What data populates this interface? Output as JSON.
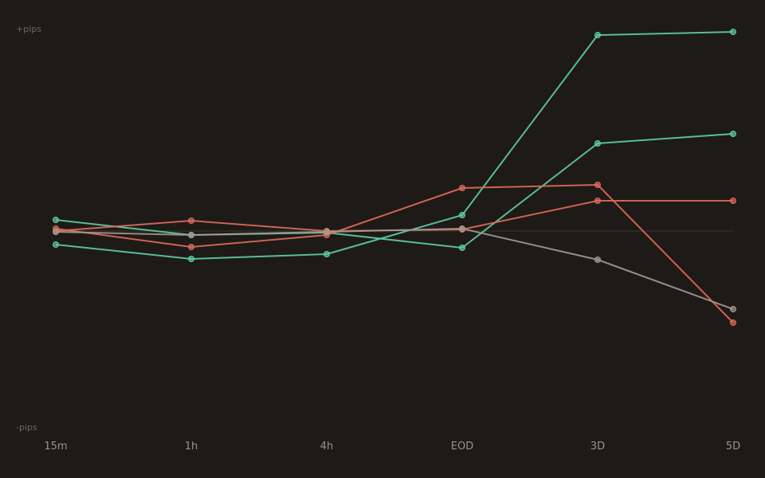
{
  "chart_data": {
    "type": "line",
    "categories": [
      "15m",
      "1h",
      "4h",
      "EOD",
      "3D",
      "5D"
    ],
    "y_top_label": "+pips",
    "y_bottom_label": "-pips",
    "ylim": [
      -100,
      100
    ],
    "baseline": 0,
    "grid": false,
    "legend": "none",
    "colors": {
      "background": "#1e1a17",
      "green": "#5ecfa7",
      "red": "#e06b5c",
      "gray": "#a39a90",
      "baseline": "#3a3530"
    },
    "series": [
      {
        "color": "green",
        "values": [
          5.6,
          -2.0,
          -0.8,
          -8.4,
          44.0,
          48.8
        ]
      },
      {
        "color": "green",
        "values": [
          -6.8,
          -14.0,
          -11.6,
          8.0,
          98.4,
          100.0
        ]
      },
      {
        "color": "red",
        "values": [
          1.2,
          -8.0,
          -2.0,
          21.6,
          23.2,
          -46.0
        ]
      },
      {
        "color": "red",
        "values": [
          0.0,
          5.2,
          0.0,
          0.8,
          15.2,
          15.2
        ]
      },
      {
        "color": "gray",
        "values": [
          -0.4,
          -2.0,
          -0.4,
          1.2,
          -14.4,
          -39.2
        ]
      }
    ]
  }
}
